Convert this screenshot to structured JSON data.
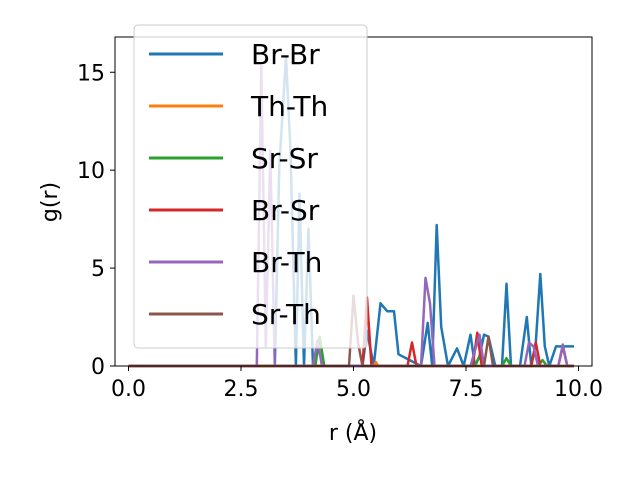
{
  "chart_data": {
    "type": "line",
    "xlabel": "r (Å)",
    "ylabel": "g(r)",
    "xlim": [
      -0.3,
      10.3
    ],
    "ylim": [
      0,
      16.8
    ],
    "xticks": [
      0.0,
      2.5,
      5.0,
      7.5,
      10.0
    ],
    "xtick_labels": [
      "0.0",
      "2.5",
      "5.0",
      "7.5",
      "10.0"
    ],
    "yticks": [
      0,
      5,
      10,
      15
    ],
    "ytick_labels": [
      "0",
      "5",
      "10",
      "15"
    ],
    "grid": false,
    "legend_position": "upper-left",
    "series": [
      {
        "name": "Br-Br",
        "color": "#1f77b4",
        "x": [
          0,
          3.25,
          3.35,
          3.5,
          3.6,
          3.72,
          3.8,
          3.9,
          4.0,
          4.1,
          4.2,
          4.5,
          5.0,
          5.2,
          5.3,
          5.45,
          5.6,
          5.75,
          5.9,
          6.0,
          6.5,
          6.65,
          6.75,
          6.85,
          6.95,
          7.1,
          7.3,
          7.45,
          7.6,
          7.7,
          7.8,
          7.9,
          8.0,
          8.15,
          8.3,
          8.4,
          8.5,
          8.7,
          8.85,
          8.95,
          9.05,
          9.15,
          9.25,
          9.35,
          9.5,
          9.9
        ],
        "y": [
          0,
          0,
          10.2,
          15.8,
          11.0,
          0,
          8.8,
          0,
          7.0,
          0,
          0,
          0,
          0,
          0,
          1.8,
          0,
          3.2,
          2.8,
          2.8,
          0.6,
          0,
          2.2,
          0,
          7.2,
          2.0,
          0,
          0.9,
          0,
          1.6,
          0,
          0.5,
          1.6,
          1.5,
          0,
          0,
          4.2,
          0,
          0,
          2.5,
          0,
          1.2,
          4.7,
          1.0,
          0,
          1.0,
          1.0
        ]
      },
      {
        "name": "Th-Th",
        "color": "#ff7f0e",
        "x": [
          0,
          5.45,
          5.5,
          5.55,
          9.9
        ],
        "y": [
          0,
          0,
          0.2,
          0,
          0
        ]
      },
      {
        "name": "Sr-Sr",
        "color": "#2ca02c",
        "x": [
          0,
          4.15,
          4.25,
          4.35,
          7.7,
          7.8,
          7.9,
          8.3,
          8.4,
          8.5,
          9.1,
          9.2,
          9.3,
          9.9
        ],
        "y": [
          0,
          0,
          1.5,
          0,
          0,
          0.5,
          0,
          0,
          0.4,
          0,
          0,
          0.3,
          0,
          0
        ]
      },
      {
        "name": "Br-Sr",
        "color": "#d62728",
        "x": [
          0,
          5.2,
          5.3,
          5.4,
          6.2,
          6.3,
          6.4,
          7.65,
          7.75,
          7.85,
          8.95,
          9.05,
          9.15,
          9.55,
          9.65,
          9.75,
          9.9
        ],
        "y": [
          0,
          0,
          3.5,
          0,
          0,
          1.2,
          0,
          0,
          1.7,
          0,
          0,
          1.2,
          0,
          0,
          1.0,
          0,
          0
        ]
      },
      {
        "name": "Br-Th",
        "color": "#9467bd",
        "x": [
          0,
          2.85,
          2.95,
          3.05,
          3.15,
          3.25,
          4.1,
          4.2,
          4.3,
          6.5,
          6.6,
          6.7,
          6.8,
          6.9,
          7.6,
          7.8,
          7.9,
          8.0,
          8.8,
          8.9,
          9.0,
          9.1,
          9.55,
          9.65,
          9.75,
          9.9
        ],
        "y": [
          0,
          0,
          15.3,
          1.0,
          11.0,
          0,
          0,
          1.3,
          0,
          0,
          4.5,
          3.2,
          0,
          0,
          0,
          1.6,
          0,
          0,
          0,
          1.2,
          1.0,
          0,
          0,
          1.1,
          0,
          0
        ]
      },
      {
        "name": "Sr-Th",
        "color": "#8c564b",
        "x": [
          0,
          4.9,
          5.0,
          5.1,
          5.2,
          7.9,
          8.0,
          8.1,
          9.9
        ],
        "y": [
          0,
          0,
          3.6,
          1.2,
          0,
          0,
          1.5,
          0,
          0
        ]
      }
    ]
  }
}
